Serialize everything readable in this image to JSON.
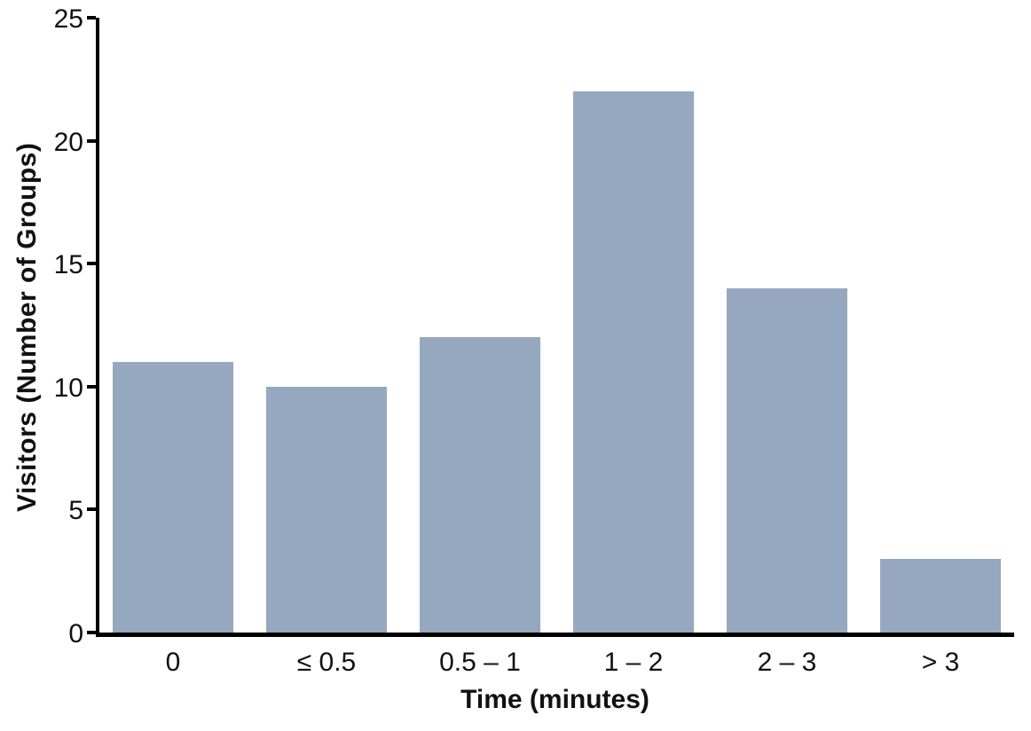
{
  "chart_data": {
    "type": "bar",
    "title": "",
    "categories": [
      "0",
      "≤ 0.5",
      "0.5 – 1",
      "1 – 2",
      "2 – 3",
      "> 3"
    ],
    "values": [
      11,
      10,
      12,
      22,
      14,
      3
    ],
    "xlabel": "Time (minutes)",
    "ylabel": "Visitors (Number of Groups)",
    "ylim": [
      0,
      25
    ],
    "yticks": [
      0,
      5,
      10,
      15,
      20,
      25
    ],
    "grid": false,
    "legend": false,
    "bar_color": "#96a8c0",
    "axis_color": "#000000",
    "text_color": "#111111"
  }
}
